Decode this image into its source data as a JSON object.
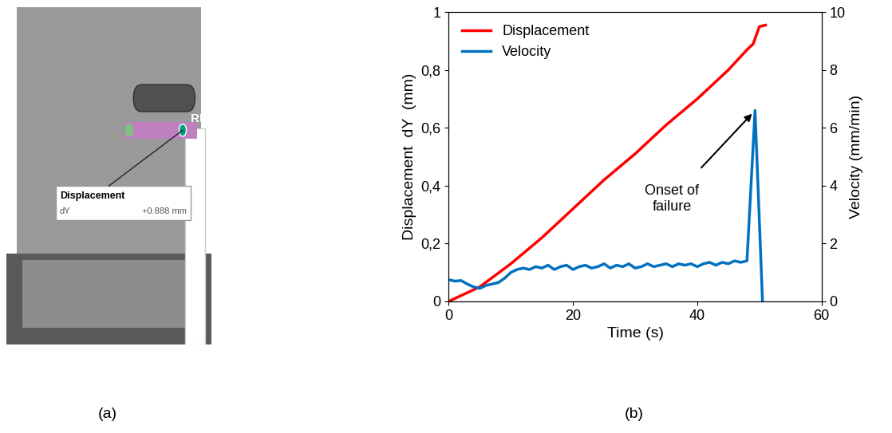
{
  "photo": {
    "label": "(a)",
    "point": "RP",
    "box_title": "Displacement",
    "box_field": "dY",
    "box_value": "+0.888 mm"
  },
  "chart_label": "(b)",
  "chart_data": {
    "type": "line",
    "xlabel": "Time (s)",
    "ylabel": "Displacement  dY  (mm)",
    "y2label": "Velocity (mm/min)",
    "xlim": [
      0,
      60
    ],
    "xticks": [
      0,
      20,
      40,
      60
    ],
    "ylim": [
      0,
      1
    ],
    "yticks": [
      0,
      {
        "value": 0.2,
        "label": "0,2"
      },
      {
        "value": 0.4,
        "label": "0,4"
      },
      {
        "value": 0.6,
        "label": "0,6"
      },
      {
        "value": 0.8,
        "label": "0,8"
      },
      1
    ],
    "y2lim": [
      0,
      10
    ],
    "y2ticks": [
      0,
      2,
      4,
      6,
      8,
      10
    ],
    "legend": "upper left",
    "annotation": "Onset of\nfailure",
    "series": [
      {
        "name": "Displacement",
        "color": "#ff0000",
        "axis": "y",
        "x": [
          0,
          5,
          10,
          15,
          20,
          25,
          30,
          35,
          40,
          45,
          48,
          49,
          49.5,
          50,
          51
        ],
        "values": [
          0,
          0.05,
          0.13,
          0.22,
          0.32,
          0.42,
          0.51,
          0.61,
          0.7,
          0.8,
          0.87,
          0.89,
          0.92,
          0.95,
          0.955
        ]
      },
      {
        "name": "Velocity",
        "color": "#0070c0",
        "axis": "y2",
        "x": [
          0,
          1,
          2,
          3,
          4,
          5,
          6,
          7,
          8,
          9,
          10,
          11,
          12,
          13,
          14,
          15,
          16,
          17,
          18,
          19,
          20,
          21,
          22,
          23,
          24,
          25,
          26,
          27,
          28,
          29,
          30,
          31,
          32,
          33,
          34,
          35,
          36,
          37,
          38,
          39,
          40,
          41,
          42,
          43,
          44,
          45,
          46,
          47,
          48,
          49.3,
          50.5
        ],
        "values": [
          0.75,
          0.7,
          0.72,
          0.6,
          0.5,
          0.45,
          0.55,
          0.6,
          0.65,
          0.8,
          1.0,
          1.1,
          1.15,
          1.1,
          1.2,
          1.15,
          1.25,
          1.1,
          1.2,
          1.25,
          1.1,
          1.2,
          1.25,
          1.15,
          1.2,
          1.3,
          1.15,
          1.25,
          1.2,
          1.3,
          1.15,
          1.2,
          1.3,
          1.2,
          1.25,
          1.3,
          1.2,
          1.3,
          1.25,
          1.3,
          1.2,
          1.3,
          1.35,
          1.25,
          1.35,
          1.3,
          1.4,
          1.35,
          1.4,
          6.6,
          0
        ]
      }
    ]
  }
}
